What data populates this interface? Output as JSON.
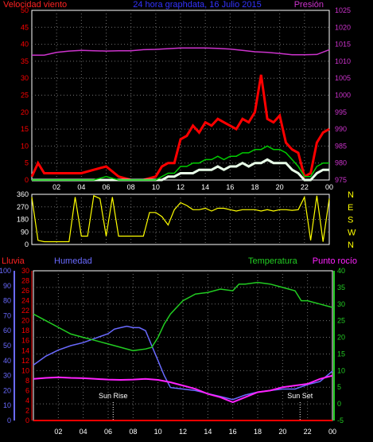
{
  "header": {
    "left_title": "Velocidad viento",
    "center_title": "24 hora graphdata, 16 Julio 2015",
    "right_title": "Presión"
  },
  "colors": {
    "background": "#000000",
    "frame": "#ffffff",
    "grid": "#707070",
    "wind_gust": "#ff0000",
    "wind_avg": "#00cc00",
    "wind_min": "#e8ffe8",
    "pressure": "#cc33cc",
    "direction": "#ffff00",
    "rain": "#ff0000",
    "humidity": "#6a6aff",
    "temperature": "#22cc22",
    "dewpoint": "#ff22ff",
    "sun_markers": "#ffffff"
  },
  "chart_data": [
    {
      "type": "line",
      "title": "24 hora graphdata, 16 Julio 2015",
      "x_ticks": [
        "02",
        "04",
        "06",
        "08",
        "10",
        "12",
        "14",
        "16",
        "18",
        "20",
        "22",
        "00"
      ],
      "y_left": {
        "label": "Velocidad viento",
        "ticks": [
          0,
          5,
          10,
          15,
          20,
          25,
          30,
          35,
          40,
          45,
          50
        ],
        "ylim": [
          0,
          50
        ]
      },
      "y_right": {
        "label": "Presión",
        "ticks": [
          975,
          980,
          985,
          990,
          995,
          1000,
          1005,
          1010,
          1015,
          1020,
          1025
        ],
        "ylim": [
          975,
          1025
        ]
      },
      "grid": true,
      "series": [
        {
          "name": "Presión",
          "axis": "right",
          "x": [
            0,
            1,
            2,
            3,
            4,
            5,
            6,
            7,
            8,
            9,
            10,
            11,
            12,
            13,
            14,
            15,
            16,
            17,
            18,
            19,
            20,
            21,
            22,
            23,
            24
          ],
          "values": [
            1011.8,
            1011.8,
            1012.6,
            1013.0,
            1013.2,
            1013.1,
            1013.0,
            1013.1,
            1013.1,
            1013.4,
            1013.5,
            1013.7,
            1013.9,
            1013.9,
            1013.9,
            1013.8,
            1013.6,
            1013.2,
            1012.8,
            1012.6,
            1012.3,
            1011.9,
            1011.9,
            1012.0,
            1013.4
          ]
        },
        {
          "name": "Racha",
          "axis": "left",
          "x": [
            0,
            0.5,
            1,
            2,
            3,
            4,
            5,
            6,
            7,
            8,
            9,
            10,
            10.5,
            11,
            11.5,
            12,
            12.5,
            13,
            13.5,
            14,
            14.5,
            15,
            15.5,
            16,
            16.5,
            17,
            17.5,
            18,
            18.5,
            19,
            19.5,
            20,
            20.5,
            21,
            21.5,
            22,
            22.5,
            23,
            23.5,
            24
          ],
          "values": [
            1,
            5,
            2,
            2,
            2,
            2,
            3,
            4,
            1,
            0,
            0,
            1,
            4,
            5,
            5,
            12,
            13,
            16,
            14,
            17,
            16,
            18,
            17,
            16,
            15,
            18,
            17,
            20,
            31,
            18,
            17,
            19,
            11,
            9,
            8,
            1,
            2,
            11,
            14,
            15
          ]
        },
        {
          "name": "Media",
          "axis": "left",
          "x": [
            0,
            1,
            2,
            3,
            4,
            5,
            6,
            7,
            8,
            9,
            10,
            10.5,
            11,
            11.5,
            12,
            12.5,
            13,
            13.5,
            14,
            14.5,
            15,
            15.5,
            16,
            16.5,
            17,
            17.5,
            18,
            18.5,
            19,
            19.5,
            20,
            20.5,
            21,
            21.5,
            22,
            22.5,
            23,
            23.5,
            24
          ],
          "values": [
            0,
            0,
            0,
            0,
            0,
            0,
            1,
            0,
            0,
            0,
            0,
            1,
            2,
            2,
            4,
            4,
            5,
            5,
            6,
            6,
            7,
            6,
            7,
            7,
            8,
            8,
            9,
            9,
            10,
            9,
            9,
            8,
            6,
            4,
            1,
            1,
            4,
            5,
            5
          ]
        },
        {
          "name": "Mínimo",
          "axis": "left",
          "x": [
            0,
            1,
            2,
            3,
            4,
            5,
            6,
            7,
            8,
            9,
            10,
            10.5,
            11,
            11.5,
            12,
            12.5,
            13,
            13.5,
            14,
            14.5,
            15,
            15.5,
            16,
            16.5,
            17,
            17.5,
            18,
            18.5,
            19,
            19.5,
            20,
            20.5,
            21,
            21.5,
            22,
            22.5,
            23,
            23.5,
            24
          ],
          "values": [
            0,
            0,
            0,
            0,
            0,
            0,
            0,
            0,
            0,
            0,
            0,
            0,
            1,
            1,
            2,
            2,
            2,
            3,
            3,
            3,
            4,
            3,
            4,
            4,
            5,
            4,
            5,
            5,
            6,
            5,
            5,
            5,
            3,
            2,
            0,
            0,
            2,
            3,
            3
          ]
        }
      ]
    },
    {
      "type": "scatter",
      "title": "",
      "x_ticks": [],
      "y_left": {
        "ticks": [
          0,
          90,
          180,
          270,
          360
        ],
        "ylim": [
          0,
          360
        ]
      },
      "y_right": {
        "ticks": [
          "N",
          "W",
          "S",
          "E",
          "N"
        ]
      },
      "grid": true,
      "series": [
        {
          "name": "Dirección",
          "x": [
            0,
            0.5,
            1,
            1.5,
            2,
            2.5,
            3,
            3.5,
            4,
            4.5,
            5,
            5.5,
            6,
            6.5,
            7,
            7.5,
            8,
            8.5,
            9,
            9.5,
            10,
            10.5,
            11,
            11.5,
            12,
            12.5,
            13,
            13.5,
            14,
            14.5,
            15,
            15.5,
            16,
            16.5,
            17,
            17.5,
            18,
            18.5,
            19,
            19.5,
            20,
            20.5,
            21,
            21.5,
            22,
            22.5,
            23,
            23.5,
            24
          ],
          "values": [
            340,
            30,
            20,
            20,
            20,
            20,
            20,
            340,
            60,
            60,
            350,
            330,
            60,
            340,
            60,
            60,
            60,
            60,
            60,
            230,
            230,
            200,
            140,
            250,
            300,
            280,
            250,
            250,
            260,
            240,
            260,
            260,
            250,
            240,
            250,
            250,
            250,
            240,
            250,
            240,
            250,
            250,
            245,
            250,
            340,
            30,
            350,
            20,
            330
          ]
        }
      ]
    },
    {
      "type": "line",
      "title": "",
      "x_ticks": [
        "02",
        "04",
        "06",
        "08",
        "10",
        "12",
        "14",
        "16",
        "18",
        "20",
        "22",
        "00"
      ],
      "legend": [
        "Lluvia",
        "Humedad",
        "Temperatura",
        "Punto rocío"
      ],
      "y_axes": {
        "lluvia": {
          "label": "Lluvia",
          "ticks": [
            0,
            2,
            4,
            6,
            8,
            10,
            12,
            14,
            16,
            18,
            20,
            22,
            24,
            26,
            28,
            30
          ],
          "ylim": [
            0,
            30
          ]
        },
        "humedad": {
          "label": "Humedad",
          "ticks": [
            0,
            10,
            20,
            30,
            40,
            50,
            60,
            70,
            80,
            90,
            100
          ],
          "ylim": [
            0,
            100
          ]
        },
        "temperatura": {
          "label": "Temperatura",
          "ticks": [
            -5,
            0,
            5,
            10,
            15,
            20,
            25,
            30,
            35,
            40
          ],
          "ylim": [
            -5,
            40
          ]
        }
      },
      "grid": true,
      "annotations": [
        {
          "label": "Sun Rise",
          "x": 6.4
        },
        {
          "label": "Sun Set",
          "x": 21.4
        }
      ],
      "series": [
        {
          "name": "Lluvia",
          "axis": "lluvia",
          "x": [
            0,
            24
          ],
          "values": [
            0,
            0
          ]
        },
        {
          "name": "Humedad",
          "axis": "humedad",
          "x": [
            0,
            1,
            2,
            3,
            4,
            5,
            6,
            6.5,
            7,
            7.5,
            8,
            8.5,
            9,
            9.5,
            10,
            10.5,
            11,
            12,
            13,
            14,
            15,
            16,
            17,
            18,
            19,
            20,
            21,
            22,
            23,
            24
          ],
          "values": [
            37,
            43,
            47,
            50,
            52,
            55,
            58,
            61,
            62,
            63,
            62,
            62,
            60,
            50,
            40,
            30,
            22,
            21,
            20,
            18,
            16,
            14,
            17,
            19,
            20,
            21,
            21,
            24,
            26,
            33
          ]
        },
        {
          "name": "Temperatura",
          "axis": "temperatura",
          "x": [
            0,
            1,
            2,
            3,
            4,
            5,
            6,
            7,
            8,
            9,
            9.5,
            10,
            10.5,
            11,
            12,
            13,
            14,
            15,
            16,
            16.5,
            17,
            18,
            19,
            20,
            21,
            21.5,
            22,
            23,
            24
          ],
          "values": [
            27,
            25,
            23,
            21,
            20,
            19,
            18,
            17,
            16,
            16.5,
            17,
            20,
            24,
            27,
            31,
            33,
            33.5,
            34.5,
            34,
            36,
            36,
            36.5,
            36,
            35,
            34,
            31,
            31,
            30,
            29
          ]
        },
        {
          "name": "Punto rocío",
          "axis": "temperatura",
          "x": [
            0,
            1,
            2,
            3,
            4,
            5,
            6,
            7,
            8,
            9,
            10,
            11,
            12,
            13,
            14,
            15,
            16,
            17,
            18,
            19,
            20,
            21,
            22,
            23,
            24
          ],
          "values": [
            7.5,
            7.8,
            8,
            7.8,
            7.7,
            7.5,
            7.3,
            7.2,
            7.3,
            7.5,
            7.2,
            6.5,
            5.5,
            4.5,
            3,
            2,
            0.5,
            2,
            3.5,
            4,
            5,
            5.5,
            6,
            7.5,
            8.5
          ]
        }
      ]
    }
  ]
}
